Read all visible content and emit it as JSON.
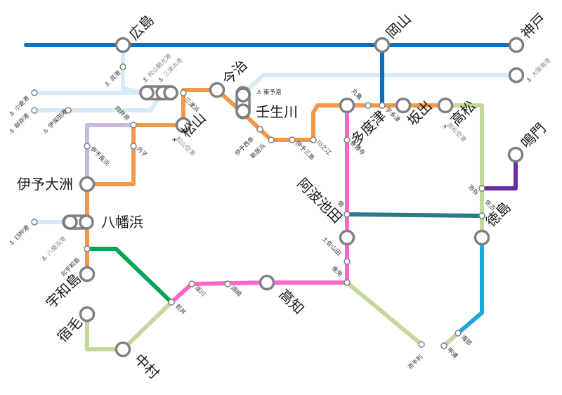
{
  "colors": {
    "sanyo": "#0b6fbe",
    "seto_ohashi": "#0b6fbe",
    "yosan": "#f2984a",
    "yosan_uchiko": "#f2984a",
    "dosan": "#ff66cc",
    "tokushima": "#2a7a8a",
    "kotoku": "#c3d89a",
    "naruto": "#6a2ea0",
    "mugi": "#1aa7e0",
    "yodo": "#c3d89a",
    "gomen": "#c3d89a",
    "yosan_nagahama": "#c9b8dc",
    "ferry": "#d6ebf5",
    "yodo_uwajima": "#00a651"
  },
  "stations": {
    "hiroshima": "広島",
    "okayama": "岡山",
    "kobe": "神戸",
    "imabari": "今治",
    "nyugawa": "壬生川",
    "matsuyama": "松山",
    "tadotsu": "多度津",
    "sakaide": "坂出",
    "takamatsu": "高松",
    "naruto": "鳴門",
    "iyo_ozu": "伊予大洲",
    "yawatahama": "八幡浜",
    "awa_ikeda": "阿波池田",
    "tokushima": "徳島",
    "uwajima": "宇和島",
    "kochi": "高知",
    "sukumo": "宿毛",
    "nakamura": "中村"
  },
  "small_stations": {
    "mitsuhama": "三津浜",
    "mukaibara": "向井原",
    "iyo_nagahama": "伊予長浜",
    "uchiko": "内子",
    "iyo_saijo": "伊予西条",
    "niihama": "新居浜",
    "iyo_mishima": "伊予三島",
    "kawanoe": "川之江",
    "marugame": "丸亀",
    "utazu": "宇多津",
    "zentsuji": "善通寺",
    "tsukuda": "佃",
    "tosa_yamada": "土佐山田",
    "gomen": "後免",
    "ikenotani": "池谷",
    "sako": "佐古",
    "kita_uwajima": "北宇和島",
    "wakai": "若井",
    "kubokawa": "窪川",
    "susaki": "須崎",
    "nahari": "奈半利",
    "kaifu": "海部",
    "kannoura": "甲浦"
  },
  "ports": {
    "kure_port": "呉港",
    "matsuyama_kanko_port": "松山観光港",
    "mitsuhama_port": "三津浜港",
    "ogoori_port": "小倉港",
    "yanai_port": "柳井港",
    "iyo_hojo_port": "伊保田港",
    "toyo_port": "東予港",
    "osaka_nanko_port": "大阪南港",
    "usuki_port": "臼杵港",
    "yawatahama_port": "八幡浜港",
    "matsuyama_airport": "松山空港",
    "takamatsu_airport": "高松空港"
  }
}
